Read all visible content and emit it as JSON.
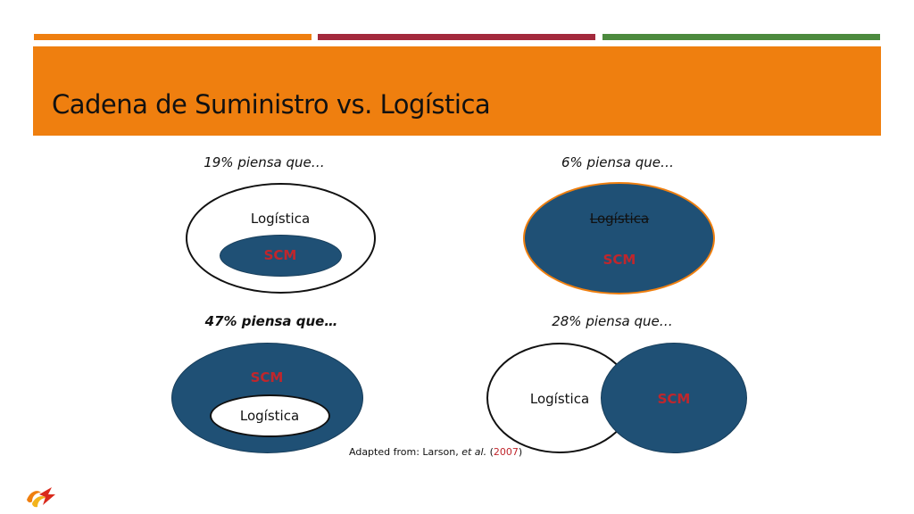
{
  "colors": {
    "orange": "#ef7f0f",
    "crimson": "#a3293c",
    "green": "#4c8a3e",
    "navy": "#1f5075",
    "scm_red": "#c0262c"
  },
  "slide": {
    "title": "Cadena de Suministro vs. Logística"
  },
  "diagrams": [
    {
      "caption": "19% piensa que…",
      "outer_label": "Logística",
      "inner_label": "SCM"
    },
    {
      "caption": "6% piensa que…",
      "struck_label": "Logística",
      "inner_label": "SCM"
    },
    {
      "caption": "47% piensa que…",
      "outer_label": "SCM",
      "inner_label": "Logística"
    },
    {
      "caption": "28% piensa que…",
      "left_label": "Logística",
      "right_label": "SCM"
    }
  ],
  "source": {
    "prefix": "Adapted from: Larson, ",
    "etal": "et al.",
    "open": " (",
    "year": "2007",
    "close": ")"
  },
  "logo_icon": "flame-logo-icon"
}
